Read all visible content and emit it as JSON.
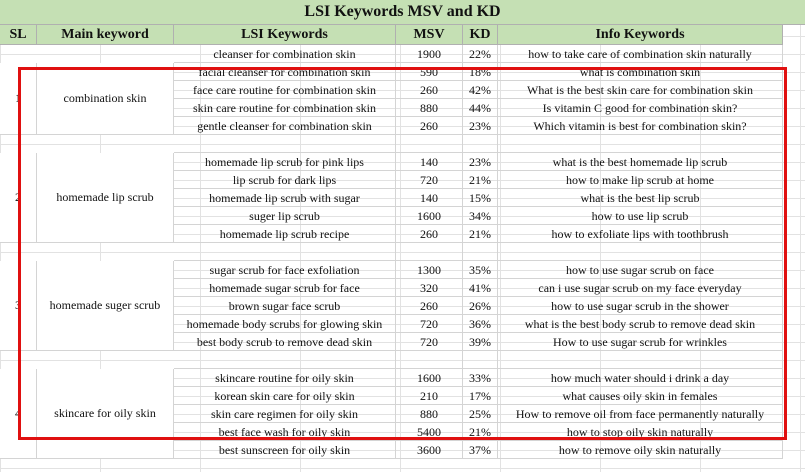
{
  "title": "LSI Keywords MSV and KD",
  "headers": {
    "sl": "SL",
    "main": "Main keyword",
    "lsi": "LSI Keywords",
    "msv": "MSV",
    "kd": "KD",
    "info": "Info Keywords"
  },
  "rows": [
    {
      "lsi": "cleanser for combination skin",
      "msv": "1900",
      "kd": "22%",
      "info": "how to take care of combination skin naturally"
    },
    {
      "lsi": "facial cleanser for combination skin",
      "msv": "590",
      "kd": "18%",
      "info": "what is combination skin"
    },
    {
      "lsi": "face care routine for combination skin",
      "msv": "260",
      "kd": "42%",
      "info": "What is the best skin care for combination skin"
    },
    {
      "lsi": "skin care routine for combination skin",
      "msv": "880",
      "kd": "44%",
      "info": "Is vitamin C good for combination skin?"
    },
    {
      "lsi": "gentle cleanser for combination skin",
      "msv": "260",
      "kd": "23%",
      "info": "Which vitamin is best for combination skin?"
    },
    {
      "lsi": "",
      "msv": "",
      "kd": "",
      "info": ""
    },
    {
      "lsi": "homemade lip scrub for pink lips",
      "msv": "140",
      "kd": "23%",
      "info": "what is the best homemade lip scrub"
    },
    {
      "lsi": "lip scrub for dark lips",
      "msv": "720",
      "kd": "21%",
      "info": "how to make lip scrub at home"
    },
    {
      "lsi": "homemade lip scrub with sugar",
      "msv": "140",
      "kd": "15%",
      "info": "what is the best lip scrub"
    },
    {
      "lsi": "suger lip scrub",
      "msv": "1600",
      "kd": "34%",
      "info": "how to use lip scrub"
    },
    {
      "lsi": "homemade lip scrub recipe",
      "msv": "260",
      "kd": "21%",
      "info": "how to exfoliate lips with toothbrush"
    },
    {
      "lsi": "",
      "msv": "",
      "kd": "",
      "info": ""
    },
    {
      "lsi": "sugar scrub for face exfoliation",
      "msv": "1300",
      "kd": "35%",
      "info": "how to use sugar scrub on face"
    },
    {
      "lsi": "homemade sugar scrub for face",
      "msv": "320",
      "kd": "41%",
      "info": "can i use sugar scrub on my face everyday"
    },
    {
      "lsi": "brown sugar face scrub",
      "msv": "260",
      "kd": "26%",
      "info": "how to use sugar scrub in the shower"
    },
    {
      "lsi": "homemade body scrubs for glowing skin",
      "msv": "720",
      "kd": "36%",
      "info": "what is the best body scrub to remove dead skin"
    },
    {
      "lsi": "best body scrub to remove dead skin",
      "msv": "720",
      "kd": "39%",
      "info": "How to use sugar scrub for wrinkles"
    },
    {
      "lsi": "",
      "msv": "",
      "kd": "",
      "info": ""
    },
    {
      "lsi": "skincare routine for oily skin",
      "msv": "1600",
      "kd": "33%",
      "info": "how much water should i drink a day"
    },
    {
      "lsi": "korean skin care for oily skin",
      "msv": "210",
      "kd": "17%",
      "info": "what causes oily skin in females"
    },
    {
      "lsi": "skin care regimen for oily skin",
      "msv": "880",
      "kd": "25%",
      "info": "How to remove oil from face permanently naturally"
    },
    {
      "lsi": "best face wash for oily skin",
      "msv": "5400",
      "kd": "21%",
      "info": "how to stop oily skin naturally"
    },
    {
      "lsi": "best sunscreen for oily skin",
      "msv": "3600",
      "kd": "37%",
      "info": "how to remove oily skin naturally"
    }
  ],
  "groups": [
    {
      "sl": "1",
      "main": "combination skin"
    },
    {
      "sl": "2",
      "main": "homemade lip scrub"
    },
    {
      "sl": "3",
      "main": "homemade suger scrub"
    },
    {
      "sl": "4",
      "main": "skincare for oily skin"
    }
  ],
  "colors": {
    "header_bg": "#c5e0b4",
    "highlight_border": "#e01010"
  }
}
